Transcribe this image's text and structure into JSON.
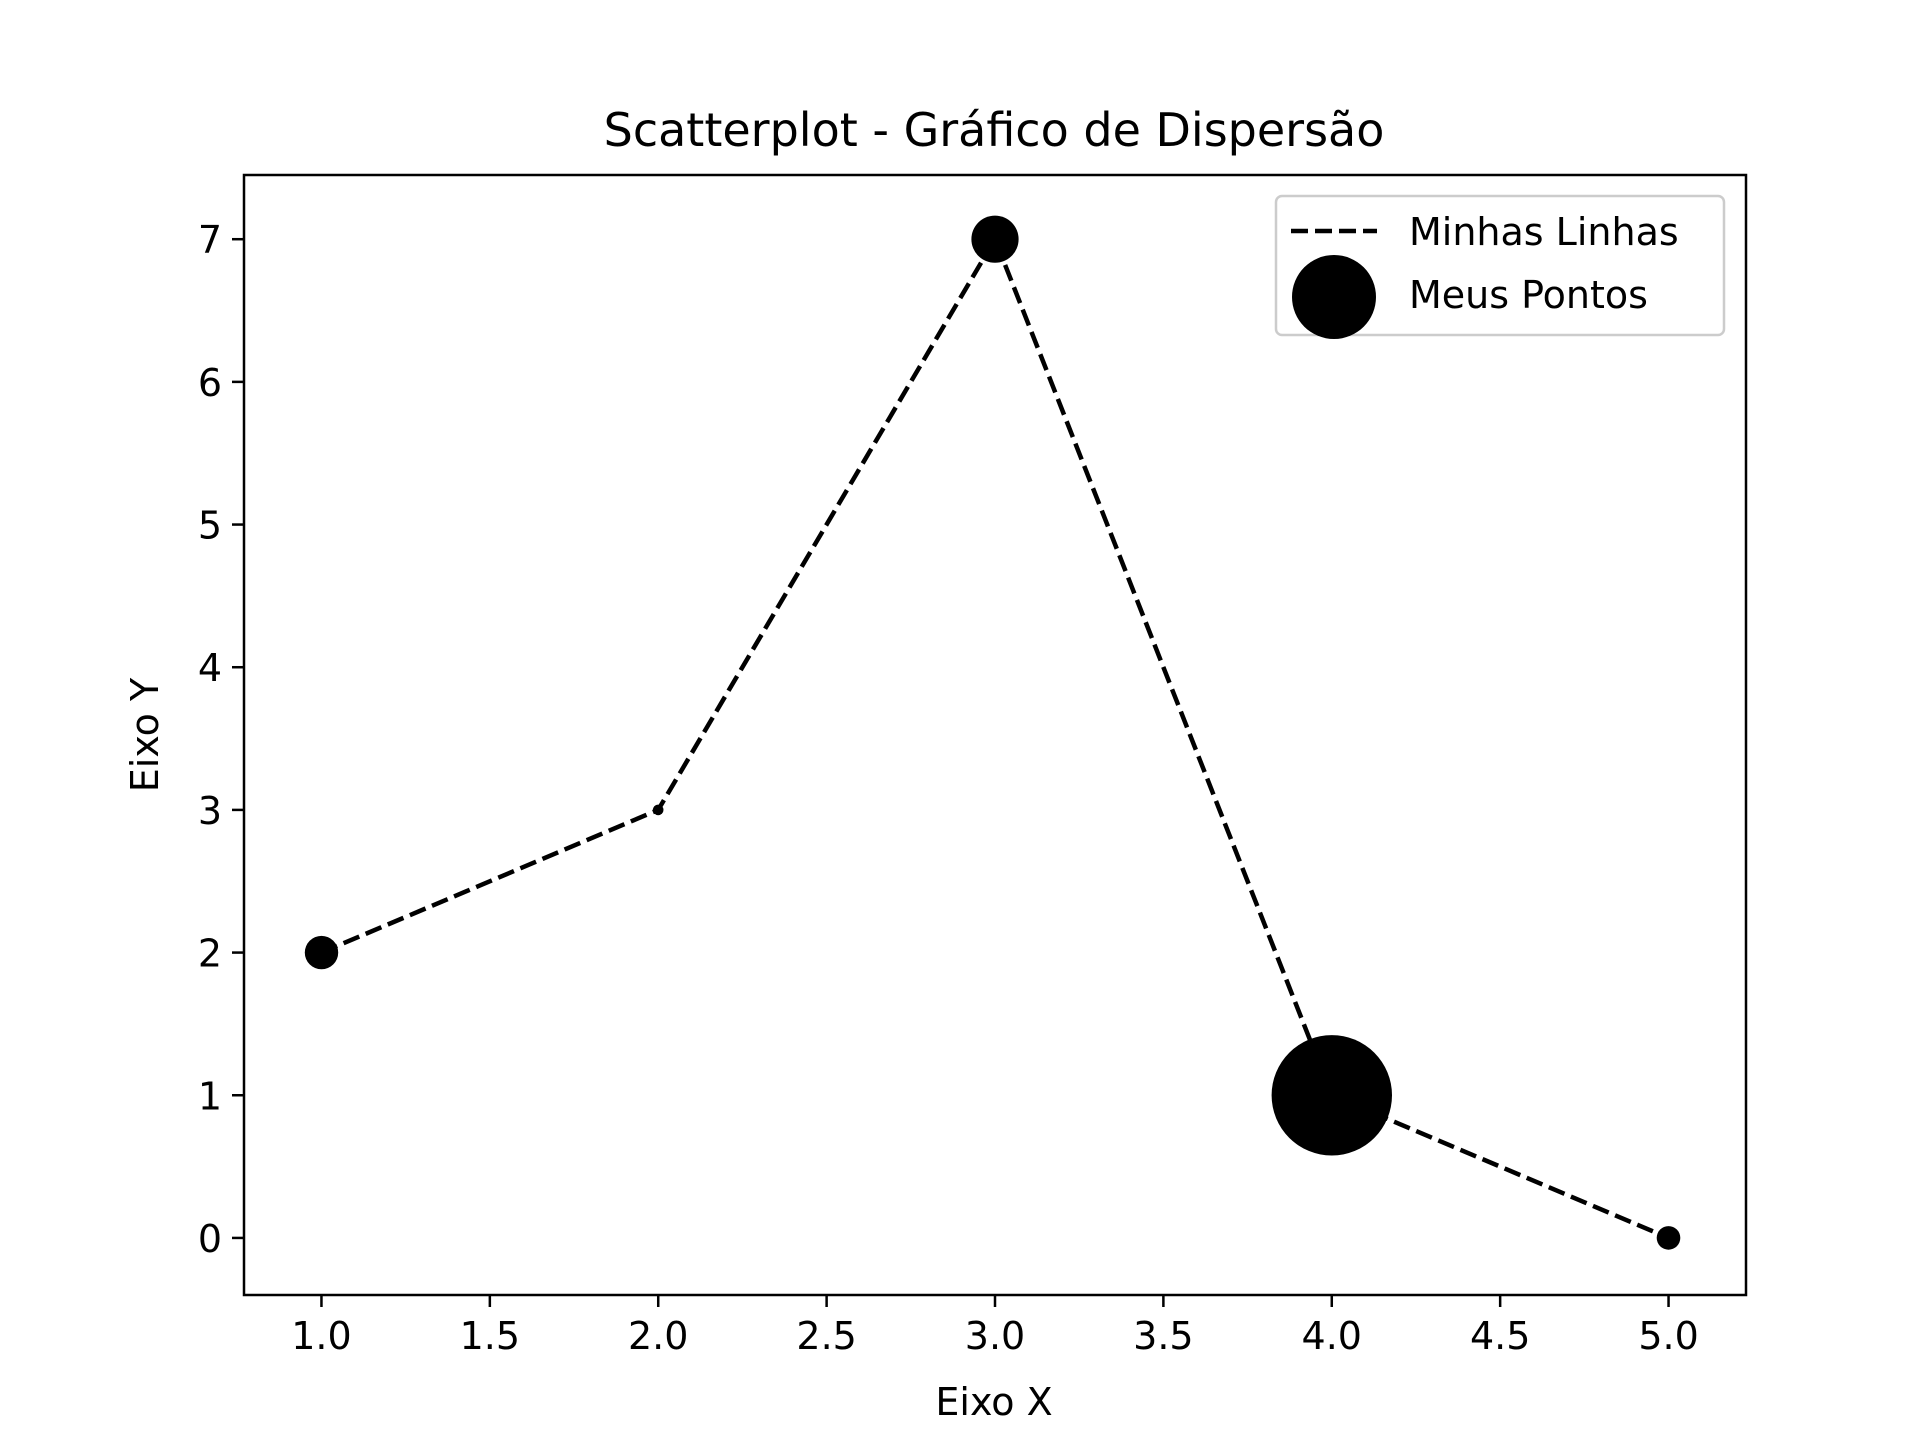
{
  "chart_data": {
    "type": "scatter",
    "title": "Scatterplot - Gráfico de Dispersão",
    "xlabel": "Eixo X",
    "ylabel": "Eixo Y",
    "xlim": [
      0.77,
      5.23
    ],
    "ylim": [
      -0.4,
      7.45
    ],
    "xticks": [
      1.0,
      1.5,
      2.0,
      2.5,
      3.0,
      3.5,
      4.0,
      4.5,
      5.0
    ],
    "xtick_labels": [
      "1.0",
      "1.5",
      "2.0",
      "2.5",
      "3.0",
      "3.5",
      "4.0",
      "4.5",
      "5.0"
    ],
    "yticks": [
      0,
      1,
      2,
      3,
      4,
      5,
      6,
      7
    ],
    "ytick_labels": [
      "0",
      "1",
      "2",
      "3",
      "4",
      "5",
      "6",
      "7"
    ],
    "grid": false,
    "legend_position": "top-right",
    "series": [
      {
        "name": "Minhas Linhas",
        "kind": "line",
        "style": "dashed",
        "color": "#000000",
        "x": [
          1,
          2,
          3,
          4,
          5
        ],
        "y": [
          2,
          3,
          7,
          1,
          0
        ]
      },
      {
        "name": "Meus Pontos",
        "kind": "scatter",
        "color": "#000000",
        "x": [
          1,
          2,
          3,
          4,
          5
        ],
        "y": [
          2,
          3,
          7,
          1,
          0
        ],
        "sizes": [
          100,
          10,
          200,
          1300,
          50
        ]
      }
    ]
  }
}
